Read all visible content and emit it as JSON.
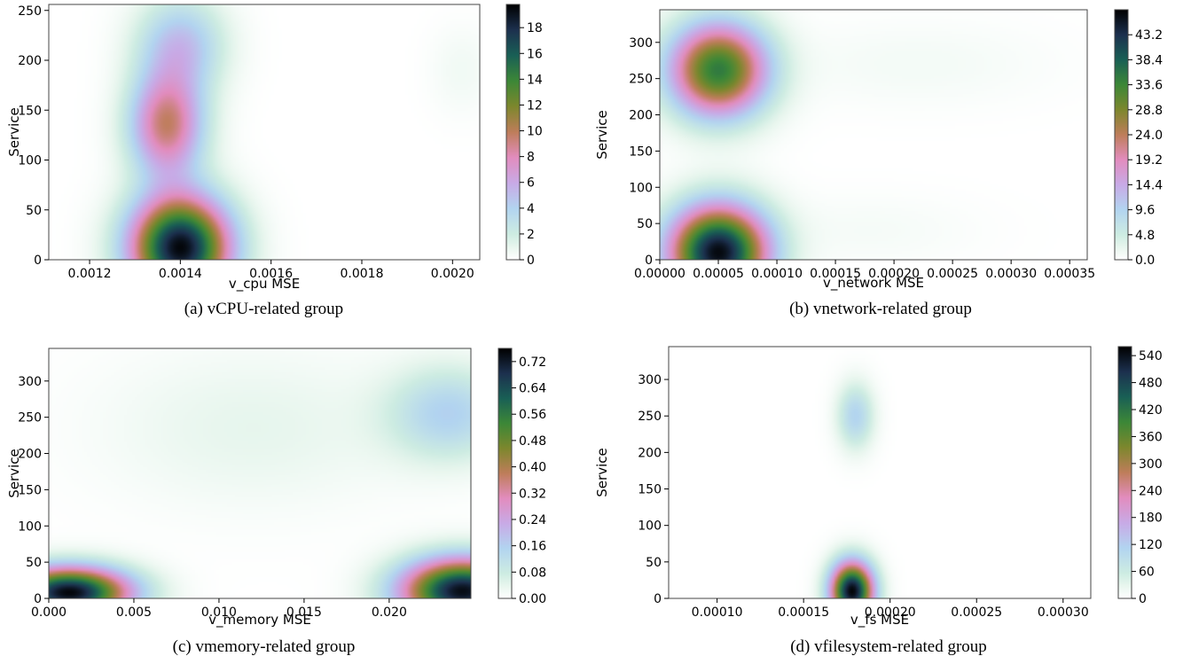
{
  "chart_data": [
    {
      "type": "heatmap",
      "caption": "(a) vCPU-related group",
      "xlabel": "v_cpu MSE",
      "ylabel": "Service",
      "xlim": [
        0.00111,
        0.00206
      ],
      "ylim": [
        0,
        256
      ],
      "xticks": [
        0.0012,
        0.0014,
        0.0016,
        0.0018,
        0.002
      ],
      "xtick_labels": [
        "0.0012",
        "0.0014",
        "0.0016",
        "0.0018",
        "0.0020"
      ],
      "yticks": [
        0,
        50,
        100,
        150,
        200,
        250
      ],
      "ytick_labels": [
        "0",
        "50",
        "100",
        "150",
        "200",
        "250"
      ],
      "colorbar_range": [
        0,
        19.8
      ],
      "colorbar_ticks": [
        0,
        2,
        4,
        6,
        8,
        10,
        12,
        14,
        16,
        18
      ],
      "colorbar_tick_labels": [
        "0",
        "2",
        "4",
        "6",
        "8",
        "10",
        "12",
        "14",
        "16",
        "18"
      ],
      "density_peaks": [
        {
          "x": 0.0014,
          "y": 12,
          "value": 19.5
        },
        {
          "x": 0.00137,
          "y": 135,
          "value": 9.5
        },
        {
          "x": 0.0014,
          "y": 215,
          "value": 5.0
        },
        {
          "x": 0.00202,
          "y": 190,
          "value": 0.6
        }
      ],
      "colormap": "cubehelix_r",
      "grid": false,
      "legend": "colorbar-right"
    },
    {
      "type": "heatmap",
      "caption": "(b) vnetwork-related group",
      "xlabel": "v_network MSE",
      "ylabel": "Service",
      "xlim": [
        0.0,
        0.000365
      ],
      "ylim": [
        0,
        345
      ],
      "xticks": [
        0.0,
        5e-05,
        0.0001,
        0.00015,
        0.0002,
        0.00025,
        0.0003,
        0.00035
      ],
      "xtick_labels": [
        "0.00000",
        "0.00005",
        "0.00010",
        "0.00015",
        "0.00020",
        "0.00025",
        "0.00030",
        "0.00035"
      ],
      "yticks": [
        0,
        50,
        100,
        150,
        200,
        250,
        300
      ],
      "ytick_labels": [
        "0",
        "50",
        "100",
        "150",
        "200",
        "250",
        "300"
      ],
      "colorbar_range": [
        0,
        48
      ],
      "colorbar_ticks": [
        0,
        4.8,
        9.6,
        14.4,
        19.2,
        24.0,
        28.8,
        33.6,
        38.4,
        43.2
      ],
      "colorbar_tick_labels": [
        "0.0",
        "4.8",
        "9.6",
        "14.4",
        "19.2",
        "24.0",
        "28.8",
        "33.6",
        "38.4",
        "43.2"
      ],
      "density_peaks": [
        {
          "x": 5e-05,
          "y": 10,
          "value": 47
        },
        {
          "x": 5e-05,
          "y": 262,
          "value": 35
        },
        {
          "x": 0.00022,
          "y": 270,
          "value": 1.2
        },
        {
          "x": 0.00018,
          "y": 40,
          "value": 1.0
        }
      ],
      "colormap": "cubehelix_r",
      "grid": false,
      "legend": "colorbar-right"
    },
    {
      "type": "heatmap",
      "caption": "(c) vmemory-related group",
      "xlabel": "v_memory MSE",
      "ylabel": "Service",
      "xlim": [
        0.0,
        0.0248
      ],
      "ylim": [
        0,
        345
      ],
      "xticks": [
        0.0,
        0.005,
        0.01,
        0.015,
        0.02
      ],
      "xtick_labels": [
        "0.000",
        "0.005",
        "0.010",
        "0.015",
        "0.020"
      ],
      "yticks": [
        0,
        50,
        100,
        150,
        200,
        250,
        300
      ],
      "ytick_labels": [
        "0",
        "50",
        "100",
        "150",
        "200",
        "250",
        "300"
      ],
      "colorbar_range": [
        0,
        0.76
      ],
      "colorbar_ticks": [
        0,
        0.08,
        0.16,
        0.24,
        0.32,
        0.4,
        0.48,
        0.56,
        0.64,
        0.72
      ],
      "colorbar_tick_labels": [
        "0.00",
        "0.08",
        "0.16",
        "0.24",
        "0.32",
        "0.40",
        "0.48",
        "0.56",
        "0.64",
        "0.72"
      ],
      "density_peaks": [
        {
          "x": 0.0012,
          "y": 8,
          "value": 0.75
        },
        {
          "x": 0.0243,
          "y": 10,
          "value": 0.74
        },
        {
          "x": 0.0235,
          "y": 255,
          "value": 0.15
        },
        {
          "x": 0.012,
          "y": 235,
          "value": 0.04
        }
      ],
      "colormap": "cubehelix_r",
      "grid": false,
      "legend": "colorbar-right"
    },
    {
      "type": "heatmap",
      "caption": "(d) vfilesystem-related group",
      "xlabel": "v_fs MSE",
      "ylabel": "Service",
      "xlim": [
        7.2e-05,
        0.000316
      ],
      "ylim": [
        0,
        345
      ],
      "xticks": [
        0.0001,
        0.00015,
        0.0002,
        0.00025,
        0.0003
      ],
      "xtick_labels": [
        "0.00010",
        "0.00015",
        "0.00020",
        "0.00025",
        "0.00030"
      ],
      "yticks": [
        0,
        50,
        100,
        150,
        200,
        250,
        300
      ],
      "ytick_labels": [
        "0",
        "50",
        "100",
        "150",
        "200",
        "250",
        "300"
      ],
      "colorbar_range": [
        0,
        560
      ],
      "colorbar_ticks": [
        0,
        60,
        120,
        180,
        240,
        300,
        360,
        420,
        480,
        540
      ],
      "colorbar_tick_labels": [
        "0",
        "60",
        "120",
        "180",
        "240",
        "300",
        "360",
        "420",
        "480",
        "540"
      ],
      "density_peaks": [
        {
          "x": 0.000178,
          "y": 10,
          "value": 555
        },
        {
          "x": 0.00018,
          "y": 250,
          "value": 110
        }
      ],
      "colormap": "cubehelix_r",
      "grid": false,
      "legend": "colorbar-right"
    }
  ]
}
